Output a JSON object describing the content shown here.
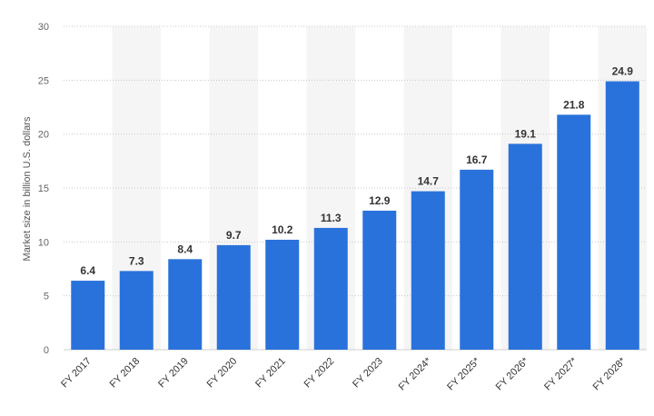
{
  "chart_data": {
    "type": "bar",
    "title": "",
    "xlabel": "",
    "ylabel": "Market size in billion U.S. dollars",
    "ylim": [
      0,
      30
    ],
    "yticks": [
      0,
      5,
      10,
      15,
      20,
      25,
      30
    ],
    "grid": true,
    "bar_color": "#2a72db",
    "band_color": "#f5f5f5",
    "categories": [
      "FY 2017",
      "FY 2018",
      "FY 2019",
      "FY 2020",
      "FY 2021",
      "FY 2022",
      "FY 2023",
      "FY 2024*",
      "FY 2025*",
      "FY 2026*",
      "FY 2027*",
      "FY 2028*"
    ],
    "values": [
      6.4,
      7.3,
      8.4,
      9.7,
      10.2,
      11.3,
      12.9,
      14.7,
      16.7,
      19.1,
      21.8,
      24.9
    ],
    "data_labels": [
      "6.4",
      "7.3",
      "8.4",
      "9.7",
      "10.2",
      "11.3",
      "12.9",
      "14.7",
      "16.7",
      "19.1",
      "21.8",
      "24.9"
    ]
  }
}
